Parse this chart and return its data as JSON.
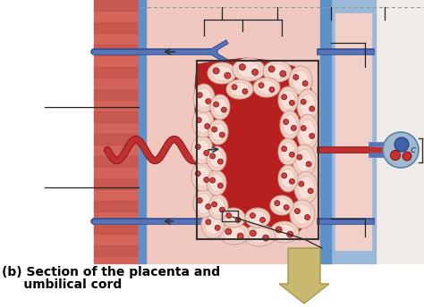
{
  "title_line1": "(b) Section of the placenta and",
  "title_line2": "     umbilical cord",
  "title_fontsize": 10.0,
  "title_color": "#000000",
  "bg_color": "#ffffff",
  "fig_width": 4.74,
  "fig_height": 3.44,
  "dpi": 100,
  "colors": {
    "muscle_red": "#d4635a",
    "muscle_dark": "#b84a42",
    "blue_vessel": "#5575b8",
    "blue_vessel_dark": "#3a5090",
    "artery_red": "#c03030",
    "artery_dark": "#8b1a1a",
    "pink_space": "#f0c8c0",
    "blood_red": "#b82020",
    "villus_outer": "#f0d0c5",
    "villus_mid": "#e8c0b0",
    "capillary_red": "#c04040",
    "blue_band_left": "#6090c8",
    "blue_band_right": "#8ab0d8",
    "blue_bg_right": "#9ab8d8",
    "white_bg": "#f8f0ee",
    "cord_bg": "#c0d8ee",
    "annotation_line": "#222222",
    "gold_arrow": "#b8a858"
  }
}
